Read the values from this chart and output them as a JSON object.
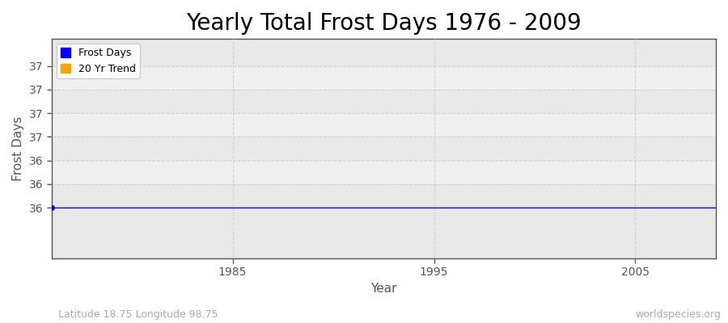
{
  "title": "Yearly Total Frost Days 1976 - 2009",
  "xlabel": "Year",
  "ylabel": "Frost Days",
  "subtitle_left": "Latitude 18.75 Longitude 98.75",
  "subtitle_right": "worldspecies.org",
  "legend_entries": [
    "Frost Days",
    "20 Yr Trend"
  ],
  "legend_colors": [
    "#0000ff",
    "#ffa500"
  ],
  "years": [
    1976,
    1977,
    1978,
    1979,
    1980,
    1981,
    1982,
    1983,
    1984,
    1985,
    1986,
    1987,
    1988,
    1989,
    1990,
    1991,
    1992,
    1993,
    1994,
    1995,
    1996,
    1997,
    1998,
    1999,
    2000,
    2001,
    2002,
    2003,
    2004,
    2005,
    2006,
    2007,
    2008,
    2009
  ],
  "frost_days": [
    36,
    36,
    36,
    36,
    36,
    36,
    36,
    36,
    36,
    36,
    36,
    36,
    36,
    36,
    36,
    36,
    36,
    36,
    36,
    36,
    36,
    36,
    36,
    36,
    36,
    36,
    36,
    36,
    36,
    36,
    36,
    36,
    36,
    36
  ],
  "xlim": [
    1976,
    2009
  ],
  "ylim_min": 35.57,
  "ylim_max": 37.43,
  "ytick_positions": [
    36.0,
    36.2,
    36.4,
    36.6,
    36.8,
    37.0,
    37.2
  ],
  "ytick_labels": [
    "36",
    "36",
    "36",
    "37",
    "37",
    "37",
    "37"
  ],
  "xtick_positions": [
    1985,
    1995,
    2005
  ],
  "background_color": "#ffffff",
  "plot_bg_color_light": "#f0f0f0",
  "plot_bg_color_dark": "#e8e8e8",
  "grid_color": "#d0d0d0",
  "spine_color": "#555555",
  "line_color": "#0000ff",
  "tick_color": "#555555",
  "title_fontsize": 20,
  "axis_label_fontsize": 11,
  "tick_fontsize": 10,
  "subtitle_fontsize": 9
}
